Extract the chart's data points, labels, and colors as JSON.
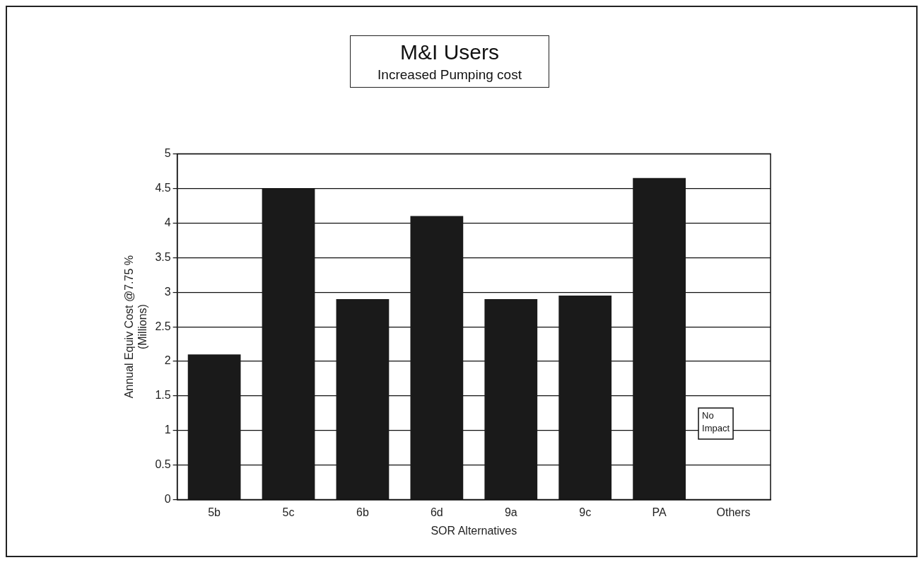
{
  "chart_data": {
    "type": "bar",
    "title": "M&I Users",
    "subtitle": "Increased Pumping cost",
    "xlabel": "SOR Alternatives",
    "ylabel": "Annual Equiv Cost @7.75 %\n(Millions)",
    "categories": [
      "5b",
      "5c",
      "6b",
      "6d",
      "9a",
      "9c",
      "PA",
      "Others"
    ],
    "values": [
      2.1,
      4.5,
      2.9,
      4.1,
      2.9,
      2.95,
      4.65,
      null
    ],
    "color": "#1a1a1a",
    "ylim": [
      0,
      5
    ],
    "yticks": [
      0,
      0.5,
      1,
      1.5,
      2,
      2.5,
      3,
      3.5,
      4,
      4.5,
      5
    ],
    "grid": "y",
    "legend": false,
    "annotations": [
      "No Impact"
    ]
  }
}
